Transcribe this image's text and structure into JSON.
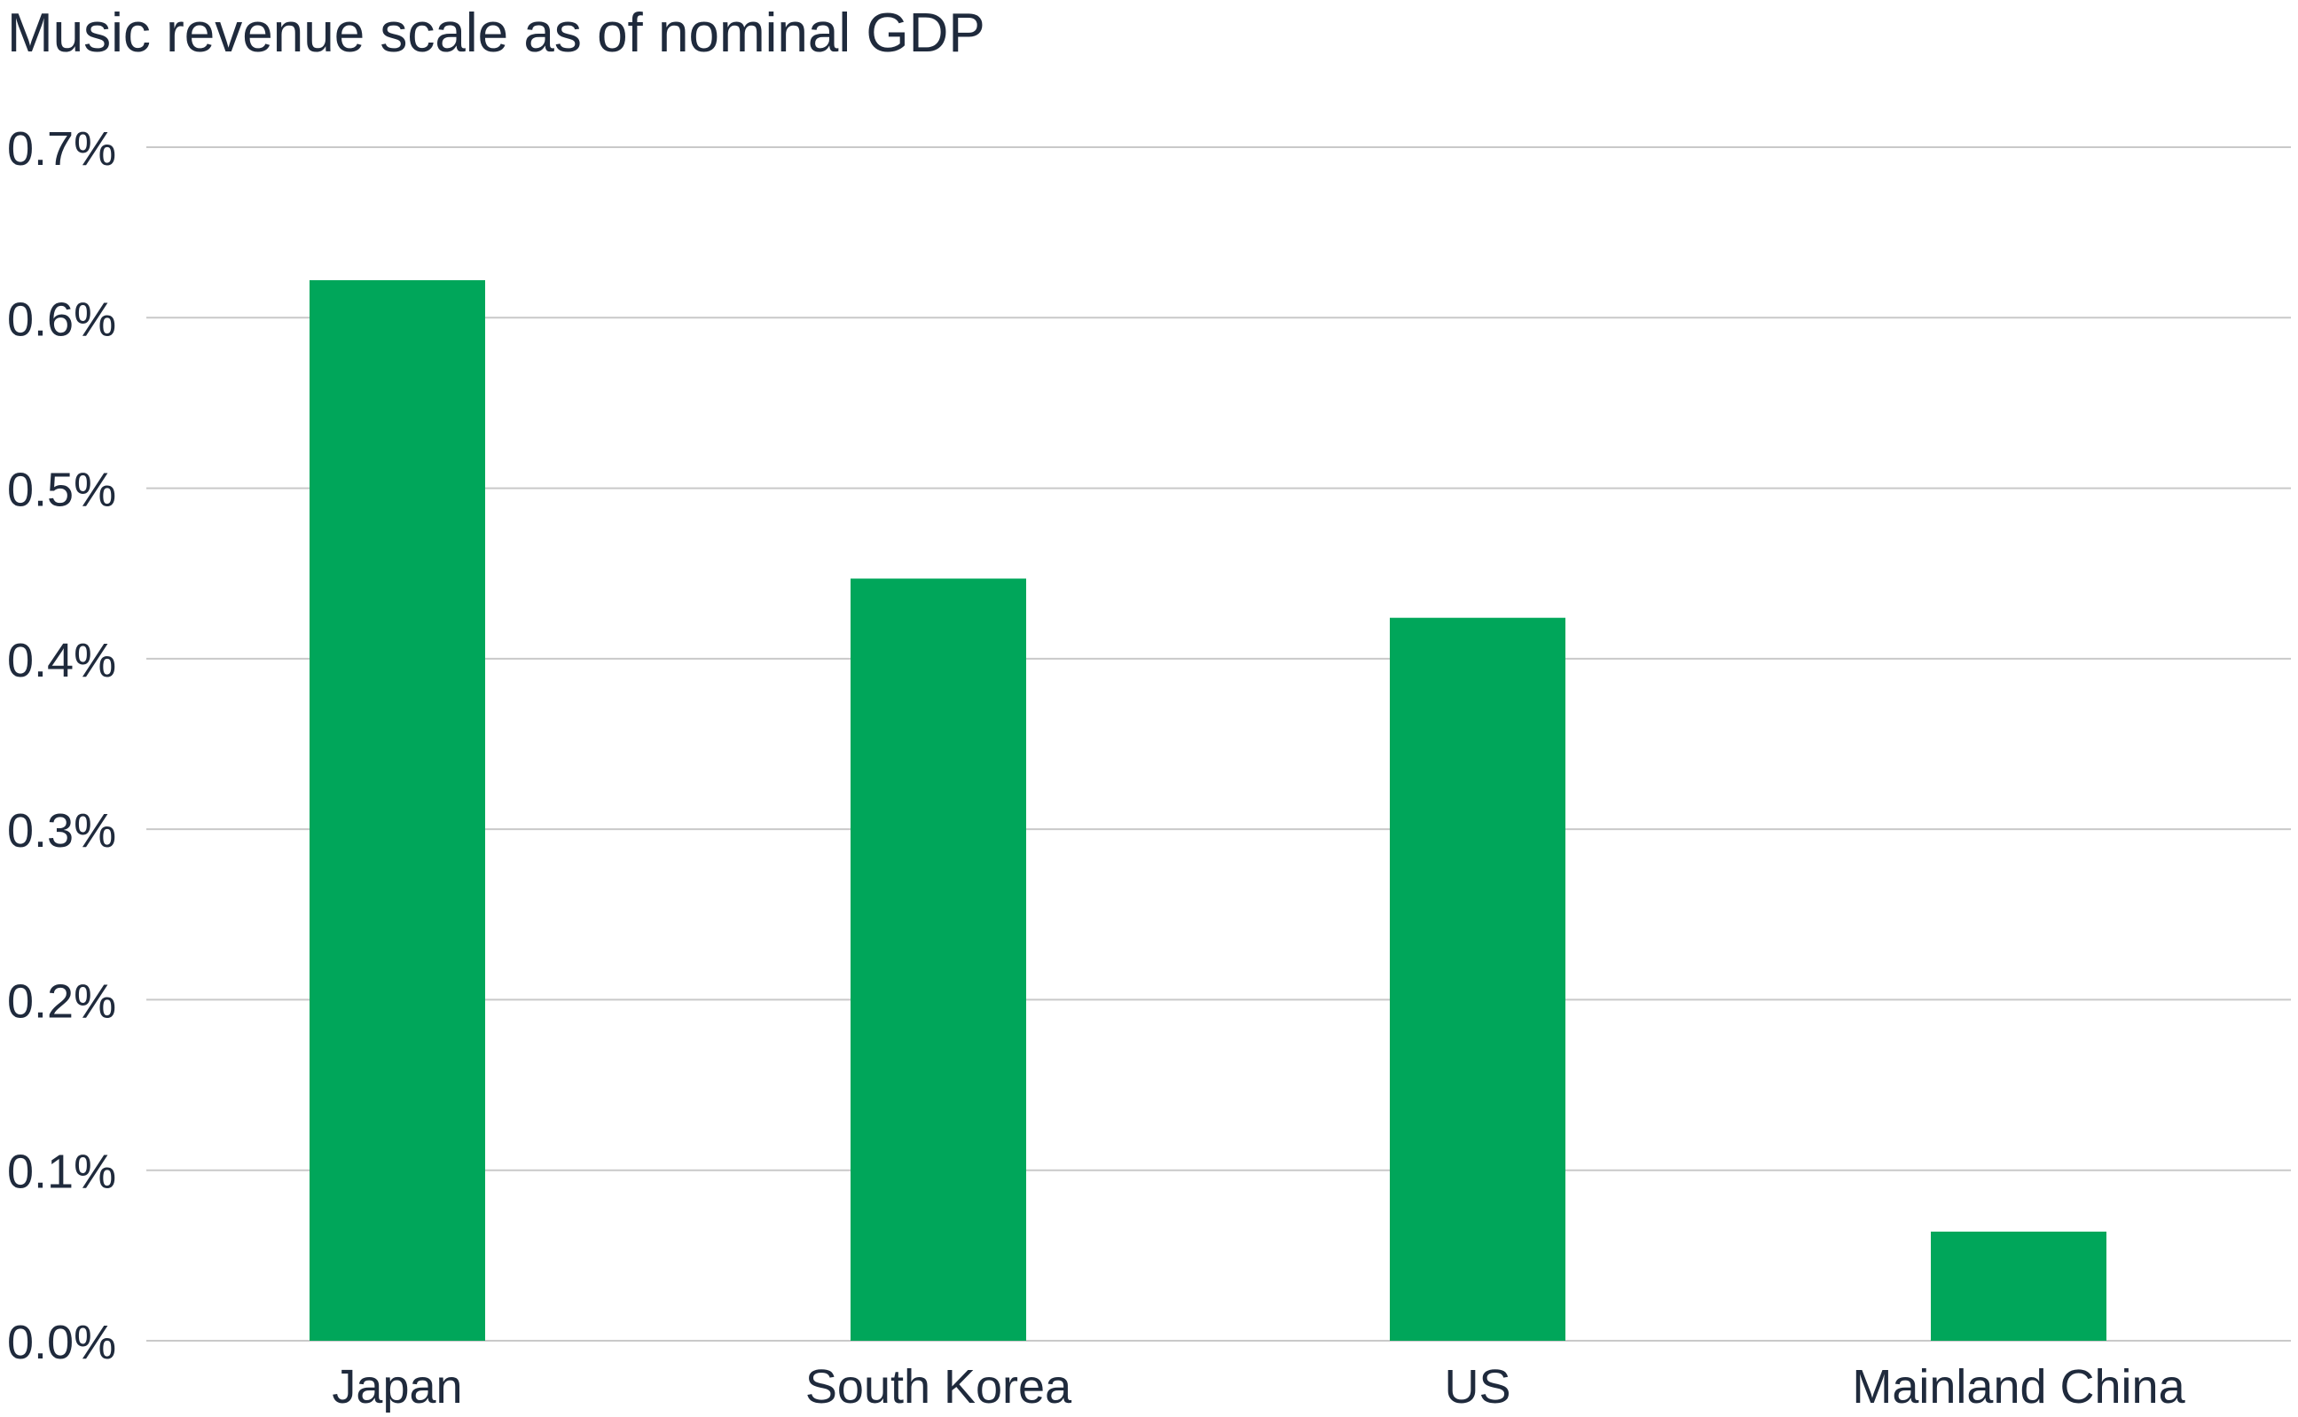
{
  "chart_data": {
    "type": "bar",
    "title": "Music revenue scale as of nominal GDP",
    "categories": [
      "Japan",
      "South Korea",
      "US",
      "Mainland China"
    ],
    "values": [
      0.622,
      0.447,
      0.424,
      0.064
    ],
    "ylim": [
      0,
      0.7
    ],
    "yticks": [
      0.0,
      0.1,
      0.2,
      0.3,
      0.4,
      0.5,
      0.6,
      0.7
    ],
    "ytick_labels": [
      "0.0%",
      "0.1%",
      "0.2%",
      "0.3%",
      "0.4%",
      "0.5%",
      "0.6%",
      "0.7%"
    ],
    "xlabel": "",
    "ylabel": "",
    "grid": true,
    "bar_color": "#00a65a"
  }
}
